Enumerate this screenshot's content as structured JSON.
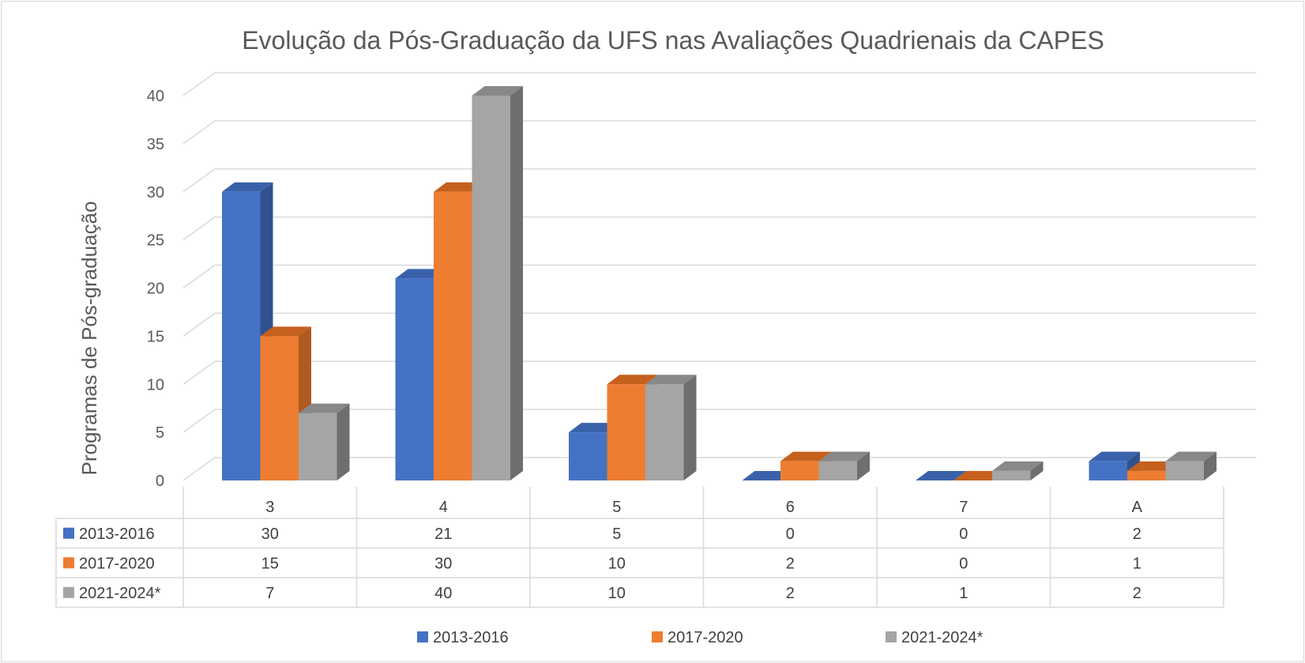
{
  "chart_data": {
    "type": "bar",
    "title": "Evolução da Pós-Graduação da UFS nas Avaliações Quadrienais da CAPES",
    "xlabel": "",
    "ylabel": "Programas de Pós-graduação",
    "ylim": [
      0,
      40
    ],
    "yticks": [
      "0",
      "5",
      "10",
      "15",
      "20",
      "25",
      "30",
      "35",
      "40"
    ],
    "categories": [
      "3",
      "4",
      "5",
      "6",
      "7",
      "A"
    ],
    "series": [
      {
        "name": "2013-2016",
        "values": [
          30,
          21,
          5,
          0,
          0,
          2
        ],
        "color": "#4472c4",
        "side": "#2f528f",
        "top": "#3a62ab"
      },
      {
        "name": "2017-2020",
        "values": [
          15,
          30,
          10,
          2,
          0,
          1
        ],
        "color": "#ed7d31",
        "side": "#ae5a21",
        "top": "#c5601d"
      },
      {
        "name": "2021-2024*",
        "values": [
          7,
          40,
          10,
          2,
          1,
          2
        ],
        "color": "#a5a5a5",
        "side": "#6e6e6e",
        "top": "#888888"
      }
    ],
    "grid": true,
    "legend": "bottom",
    "data_table": true
  }
}
